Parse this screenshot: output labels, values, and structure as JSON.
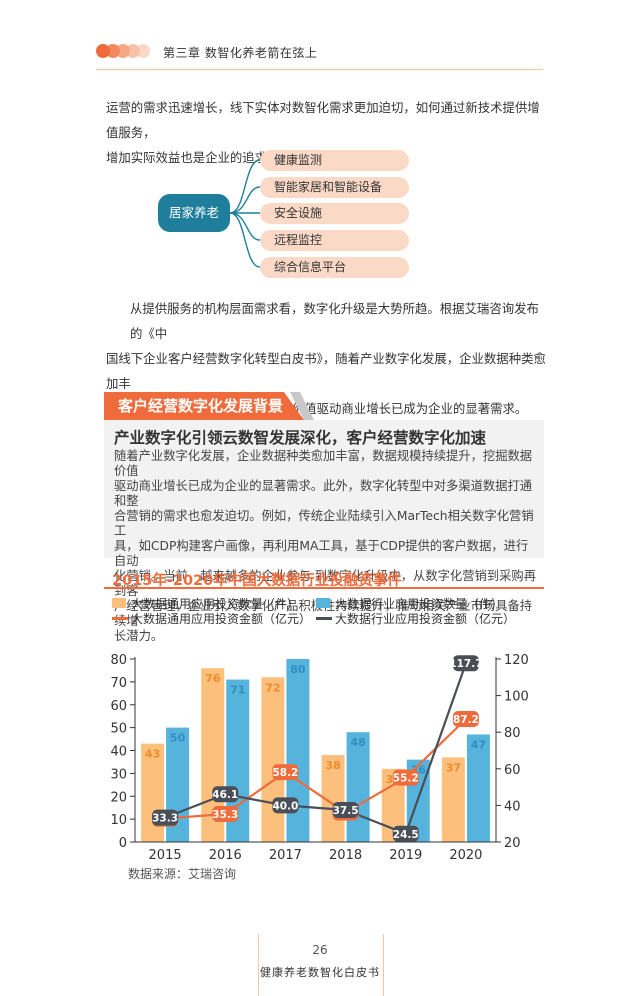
{
  "header": {
    "chapter_title": "第三章 数智化养老箭在弦上",
    "dot_colors": [
      "#ef6b3b",
      "#f28a5e",
      "#f5a683",
      "#f8c2a8",
      "#fbd9c7"
    ]
  },
  "intro_paragraph": [
    "运营的需求迅速增长，线下实体对数智化需求更加迫切，如何通过新技术提供增值服务，",
    "增加实际效益也是企业的追求。"
  ],
  "mindmap": {
    "center": "居家养老",
    "items": [
      "健康监测",
      "智能家居和智能设备",
      "安全设施",
      "远程监控",
      "综合信息平台"
    ]
  },
  "paragraph2": [
    "从提供服务的机构层面需求看，数字化升级是大势所趋。根据艾瑞咨询发布的《中",
    "国线下企业客户经营数字化转型白皮书》，随着产业数字化发展，企业数据种类愈加丰",
    "富，数据规模持续提升，挖掘数据价值驱动商业增长已成为企业的显著需求。"
  ],
  "section": {
    "title": "客户经营数字化发展背景",
    "subtitle": "产业数字化引领云数智发展深化，客户经营数字化加速",
    "body_lines": [
      "随着产业数字化发展，企业数据种类愈加丰富，数据规模持续提升，挖掘数据价值",
      "驱动商业增长已成为企业的显著需求。此外，数字化转型中对多渠道数据打通和整",
      "合营销的需求也愈发迫切。例如，传统企业陆续引入MarTech相关数字化营销工",
      "具，如CDP构建客户画像，再利用MA工具，基于CDP提供的客户数据，进行自动",
      "化营销。当前，越来越多的企业参与  到数字化升级中，从数字化营销到采购再到客",
      "户经营管理，企业引入数字化产品积极性持续提升，推动相关产业市场具备持续增",
      "长潜力。"
    ]
  },
  "chart_data": {
    "type": "bar",
    "title": "2015年-2020年中国大数据行业投融资事件",
    "categories": [
      "2015",
      "2016",
      "2017",
      "2018",
      "2019",
      "2020"
    ],
    "series": [
      {
        "name": "大数据通用应用投资数量（件）",
        "kind": "bar",
        "axis": "left",
        "color": "#fdc07c",
        "values": [
          43,
          76,
          72,
          38,
          32,
          37
        ]
      },
      {
        "name": "大数据行业应用投资数量（件）",
        "kind": "bar",
        "axis": "left",
        "color": "#55b3dc",
        "values": [
          50,
          71,
          80,
          48,
          36,
          47
        ]
      },
      {
        "name": "大数据通用应用投资金额（亿元）",
        "kind": "line",
        "axis": "right",
        "color": "#ef6b3b",
        "values": [
          32.8,
          35.3,
          58.2,
          36.1,
          55.2,
          87.2
        ]
      },
      {
        "name": "大数据行业应用投资金额（亿元）",
        "kind": "line",
        "axis": "right",
        "color": "#4a4f57",
        "values": [
          33.3,
          46.1,
          40.0,
          37.5,
          24.5,
          117.7
        ]
      }
    ],
    "left_axis": {
      "min": 0,
      "max": 80,
      "ticks": [
        0,
        10,
        20,
        30,
        40,
        50,
        60,
        70,
        80
      ]
    },
    "right_axis": {
      "min": 20,
      "max": 120,
      "ticks": [
        20,
        40,
        60,
        80,
        100,
        120
      ]
    },
    "grid": false,
    "legend": "top",
    "source": "数据来源：艾瑞咨询"
  },
  "footer": {
    "page_number": "26",
    "book_title": "健康养老数智化白皮书"
  }
}
